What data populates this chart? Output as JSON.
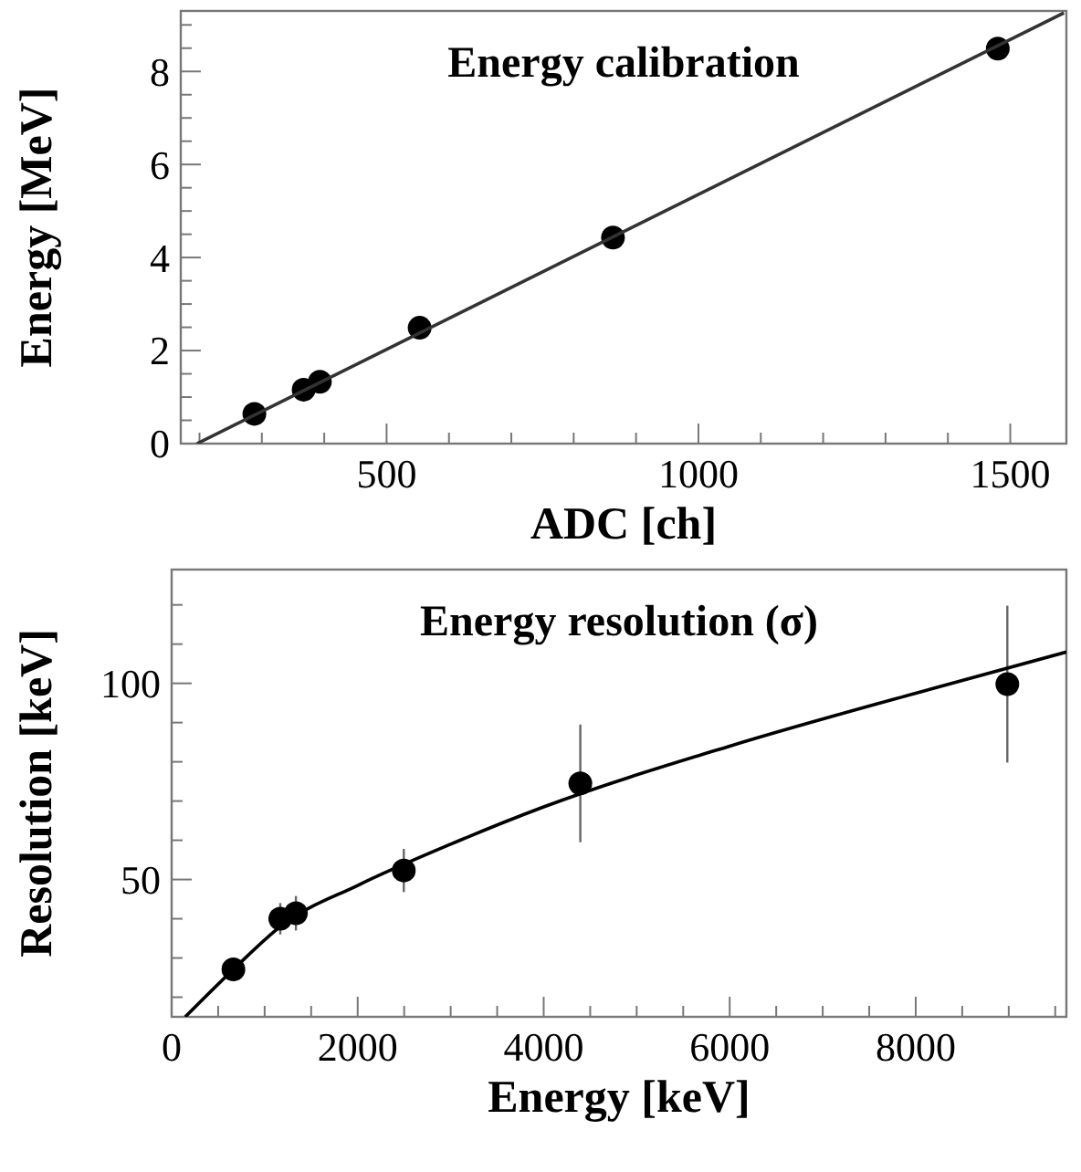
{
  "chart_data": [
    {
      "type": "scatter",
      "title": "Energy calibration",
      "xlabel": "ADC [ch]",
      "ylabel": "Energy [MeV]",
      "xlim": [
        170,
        1590
      ],
      "ylim": [
        0,
        9.3
      ],
      "xticks": [
        {
          "value": 200,
          "label": null
        },
        {
          "value": 300,
          "label": null
        },
        {
          "value": 400,
          "label": null
        },
        500,
        {
          "value": 600,
          "label": null
        },
        {
          "value": 700,
          "label": null
        },
        {
          "value": 800,
          "label": null
        },
        {
          "value": 900,
          "label": null
        },
        1000,
        {
          "value": 1100,
          "label": null
        },
        {
          "value": 1200,
          "label": null
        },
        {
          "value": 1300,
          "label": null
        },
        {
          "value": 1400,
          "label": null
        },
        1500
      ],
      "yticks": [
        0,
        {
          "value": 0.5,
          "label": null
        },
        {
          "value": 1,
          "label": null
        },
        {
          "value": 1.5,
          "label": null
        },
        2,
        {
          "value": 2.5,
          "label": null
        },
        {
          "value": 3,
          "label": null
        },
        {
          "value": 3.5,
          "label": null
        },
        4,
        {
          "value": 4.5,
          "label": null
        },
        {
          "value": 5,
          "label": null
        },
        {
          "value": 5.5,
          "label": null
        },
        6,
        {
          "value": 6.5,
          "label": null
        },
        {
          "value": 7,
          "label": null
        },
        {
          "value": 7.5,
          "label": null
        },
        8,
        {
          "value": 8.5,
          "label": null
        },
        {
          "value": 9,
          "label": null
        }
      ],
      "grid": false,
      "series": [
        {
          "color": "#000000",
          "marker": "circle",
          "x": [
            288,
            367,
            393,
            553,
            863,
            1480
          ],
          "values": [
            0.64,
            1.16,
            1.33,
            2.49,
            4.43,
            8.49
          ]
        },
        {
          "type": "line",
          "color": "#333333",
          "marker": "none",
          "line_style": "solid",
          "x": [
            196,
            1586
          ],
          "values": [
            0,
            9.26
          ]
        }
      ]
    },
    {
      "type": "scatter",
      "title": "Energy resolution (σ)",
      "xlabel": "Energy [keV]",
      "ylabel": "Resolution [keV]",
      "xlim": [
        0,
        9620
      ],
      "ylim": [
        15,
        129
      ],
      "xticks": [
        0,
        {
          "value": 500,
          "label": null
        },
        {
          "value": 1000,
          "label": null
        },
        {
          "value": 1500,
          "label": null
        },
        2000,
        {
          "value": 2500,
          "label": null
        },
        {
          "value": 3000,
          "label": null
        },
        {
          "value": 3500,
          "label": null
        },
        4000,
        {
          "value": 4500,
          "label": null
        },
        {
          "value": 5000,
          "label": null
        },
        {
          "value": 5500,
          "label": null
        },
        6000,
        {
          "value": 6500,
          "label": null
        },
        {
          "value": 7000,
          "label": null
        },
        {
          "value": 7500,
          "label": null
        },
        8000,
        {
          "value": 8500,
          "label": null
        },
        {
          "value": 9000,
          "label": null
        },
        {
          "value": 9500,
          "label": null
        }
      ],
      "yticks": [
        {
          "value": 20,
          "label": null
        },
        {
          "value": 30,
          "label": null
        },
        {
          "value": 40,
          "label": null
        },
        50,
        {
          "value": 60,
          "label": null
        },
        {
          "value": 70,
          "label": null
        },
        {
          "value": 80,
          "label": null
        },
        {
          "value": 90,
          "label": null
        },
        100,
        {
          "value": 110,
          "label": null
        },
        {
          "value": 120,
          "label": null
        }
      ],
      "grid": false,
      "series": [
        {
          "color": "#000000",
          "marker": "circle",
          "x": [
            664,
            1168,
            1336,
            2496,
            4394,
            8985
          ],
          "values": [
            27.1,
            40.0,
            41.4,
            52.3,
            74.5,
            99.8
          ],
          "errors": [
            null,
            4,
            4.4,
            5.5,
            15,
            20
          ]
        },
        {
          "type": "line",
          "color": "#000000",
          "marker": "none",
          "line_style": "solid",
          "x": [
            146,
            664,
            1200,
            2000,
            3000,
            4000,
            6000,
            8000,
            9620
          ],
          "values": [
            15,
            27.1,
            38.6,
            48.5,
            59,
            68.5,
            84,
            97.5,
            108
          ]
        }
      ]
    }
  ]
}
